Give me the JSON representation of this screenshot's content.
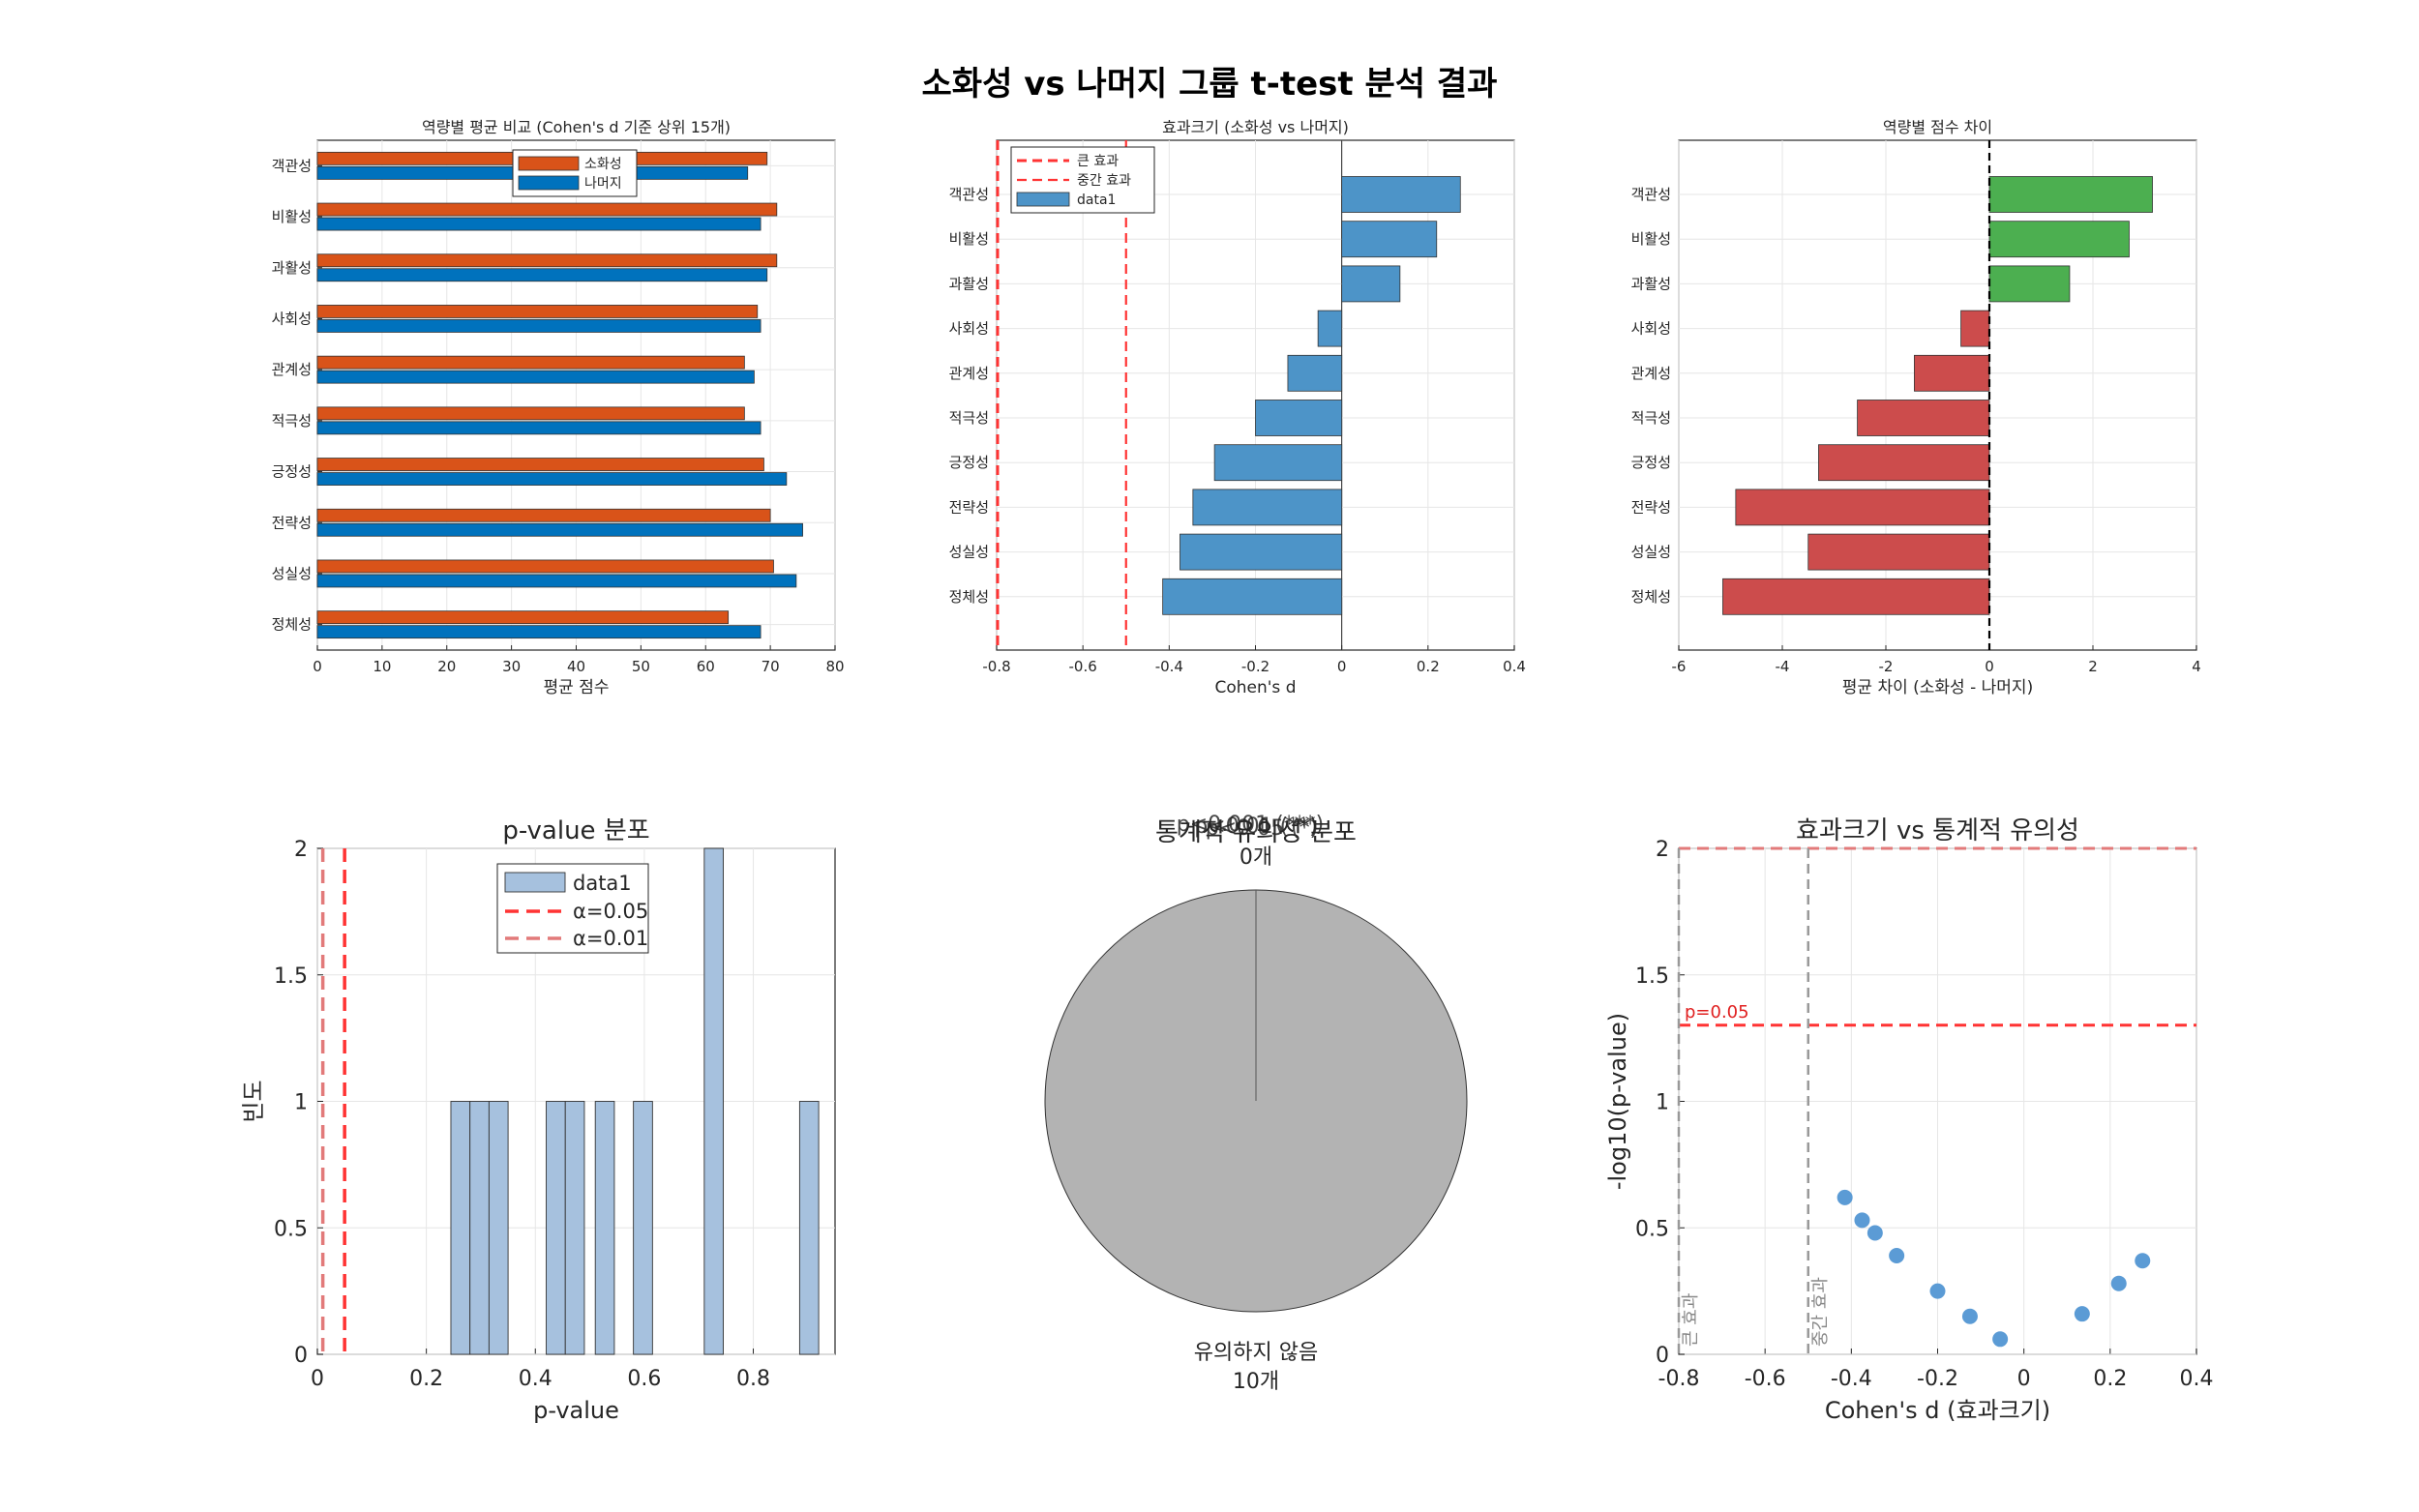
{
  "figure": {
    "suptitle": "소화성 vs 나머지 그룹 t-test 분석 결과"
  },
  "colors": {
    "orange": "#D95319",
    "blue": "#0072BD",
    "lightblue": "#4D94C8",
    "green": "#4CAF50",
    "red": "#CC4C4C",
    "hist": "#A6C1DE",
    "dashred": "#FF3333",
    "dashpink": "#E27A7A",
    "gray": "#B3B3B3",
    "scatter": "#5B9BD5"
  },
  "chart_data": [
    {
      "id": "mean-compare",
      "type": "bar",
      "orientation": "horizontal",
      "title": "역량별 평균 비교 (Cohen's d 기준 상위 15개)",
      "xlabel": "평균 점수",
      "ylabel": "",
      "xlim": [
        0,
        80
      ],
      "xticks": [
        "0",
        "10",
        "20",
        "30",
        "40",
        "50",
        "60",
        "70",
        "80"
      ],
      "categories": [
        "객관성",
        "비활성",
        "과활성",
        "사회성",
        "관계성",
        "적극성",
        "긍정성",
        "전략성",
        "성실성",
        "정체성"
      ],
      "series": [
        {
          "name": "소화성",
          "values": [
            69.5,
            71,
            71,
            68,
            66,
            66,
            69,
            70,
            70.5,
            63.5
          ]
        },
        {
          "name": "나머지",
          "values": [
            66.5,
            68.5,
            69.5,
            68.5,
            67.5,
            68.5,
            72.5,
            75,
            74,
            68.5
          ]
        }
      ],
      "legend": "top-center"
    },
    {
      "id": "effect-size",
      "type": "bar",
      "orientation": "horizontal",
      "title": "효과크기 (소화성 vs 나머지)",
      "xlabel": "Cohen's d",
      "xlim": [
        -0.8,
        0.4
      ],
      "xticks": [
        "-0.8",
        "-0.6",
        "-0.4",
        "-0.2",
        "0",
        "0.2",
        "0.4"
      ],
      "categories": [
        "객관성",
        "비활성",
        "과활성",
        "사회성",
        "관계성",
        "적극성",
        "긍정성",
        "전략성",
        "성실성",
        "정체성"
      ],
      "values": [
        0.275,
        0.22,
        0.135,
        -0.055,
        -0.125,
        -0.2,
        -0.295,
        -0.345,
        -0.375,
        -0.415
      ],
      "reference_lines": [
        {
          "name": "큰 효과",
          "x": -0.8
        },
        {
          "name": "중간 효과",
          "x": -0.5
        }
      ],
      "legend_entries": [
        "큰 효과",
        "중간 효과",
        "data1"
      ],
      "legend": "top-left"
    },
    {
      "id": "score-diff",
      "type": "bar",
      "orientation": "horizontal",
      "title": "역량별 점수 차이",
      "xlabel": "평균 차이 (소화성 - 나머지)",
      "xlim": [
        -6,
        4
      ],
      "xticks": [
        "-6",
        "-4",
        "-2",
        "0",
        "2",
        "4"
      ],
      "categories": [
        "객관성",
        "비활성",
        "과활성",
        "사회성",
        "관계성",
        "적극성",
        "긍정성",
        "전략성",
        "성실성",
        "정체성"
      ],
      "values": [
        3.15,
        2.7,
        1.55,
        -0.55,
        -1.45,
        -2.55,
        -3.3,
        -4.9,
        -3.5,
        -5.15
      ]
    },
    {
      "id": "pvalue-hist",
      "type": "bar",
      "title": "p-value 분포",
      "xlabel": "p-value",
      "ylabel": "빈도",
      "xlim": [
        0,
        0.95
      ],
      "ylim": [
        0,
        2
      ],
      "xticks": [
        "0",
        "0.2",
        "0.4",
        "0.6",
        "0.8"
      ],
      "yticks": [
        "0",
        "0.5",
        "1",
        "1.5",
        "2"
      ],
      "bins": [
        {
          "from": 0.245,
          "to": 0.28,
          "count": 1
        },
        {
          "from": 0.28,
          "to": 0.315,
          "count": 1
        },
        {
          "from": 0.315,
          "to": 0.35,
          "count": 1
        },
        {
          "from": 0.42,
          "to": 0.455,
          "count": 1
        },
        {
          "from": 0.455,
          "to": 0.49,
          "count": 1
        },
        {
          "from": 0.51,
          "to": 0.545,
          "count": 1
        },
        {
          "from": 0.58,
          "to": 0.615,
          "count": 1
        },
        {
          "from": 0.71,
          "to": 0.745,
          "count": 2
        },
        {
          "from": 0.885,
          "to": 0.92,
          "count": 1
        }
      ],
      "reference_lines": [
        {
          "name": "α=0.05",
          "x": 0.05
        },
        {
          "name": "α=0.01",
          "x": 0.01
        }
      ],
      "legend_entries": [
        "data1",
        "α=0.05",
        "α=0.01"
      ],
      "legend": "top-center"
    },
    {
      "id": "significance-pie",
      "type": "pie",
      "title": "통계적 유의성 분포",
      "slices": [
        {
          "label": "유의하지 않음",
          "count_label": "10개",
          "value": 10
        },
        {
          "label": "p<0.001 (***)",
          "count_label": "0개",
          "value": 0
        },
        {
          "label": "p<0.01 (**)",
          "count_label": "0개",
          "value": 0
        },
        {
          "label": "p<0.05 (*)",
          "count_label": "0개",
          "value": 0
        }
      ],
      "overlap_labels": [
        "p<0.001 (***)",
        "p<0.01 (**)",
        "p<0.05 (*)"
      ],
      "overlap_count": "0개"
    },
    {
      "id": "effect-vs-sig",
      "type": "scatter",
      "title": "효과크기 vs 통계적 유의성",
      "xlabel": "Cohen's d (효과크기)",
      "ylabel": "-log10(p-value)",
      "xlim": [
        -0.8,
        0.4
      ],
      "ylim": [
        0,
        2
      ],
      "xticks": [
        "-0.8",
        "-0.6",
        "-0.4",
        "-0.2",
        "0",
        "0.2",
        "0.4"
      ],
      "yticks": [
        "0",
        "0.5",
        "1",
        "1.5",
        "2"
      ],
      "points": [
        {
          "x": -0.415,
          "y": 0.62
        },
        {
          "x": -0.375,
          "y": 0.53
        },
        {
          "x": -0.345,
          "y": 0.48
        },
        {
          "x": -0.295,
          "y": 0.39
        },
        {
          "x": -0.2,
          "y": 0.25
        },
        {
          "x": -0.125,
          "y": 0.15
        },
        {
          "x": -0.055,
          "y": 0.06
        },
        {
          "x": 0.135,
          "y": 0.16
        },
        {
          "x": 0.22,
          "y": 0.28
        },
        {
          "x": 0.275,
          "y": 0.37
        }
      ],
      "hlines": [
        {
          "y": 1.301,
          "label": "p=0.05"
        },
        {
          "y": 2,
          "label": ""
        }
      ],
      "vlines": [
        {
          "x": -0.8,
          "label": "큰 효과"
        },
        {
          "x": -0.5,
          "label": "중간 효과"
        }
      ]
    }
  ]
}
